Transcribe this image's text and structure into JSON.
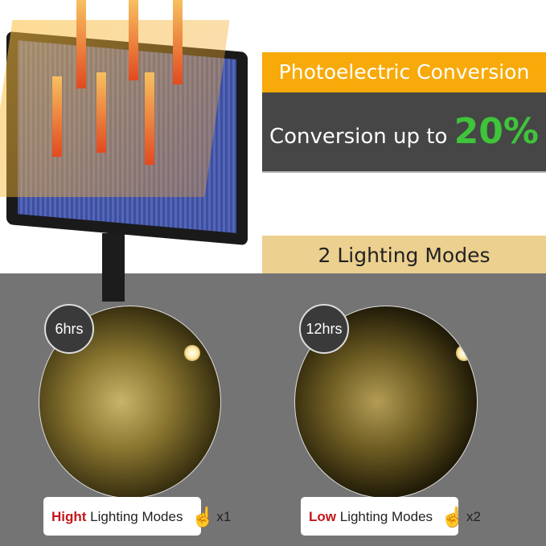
{
  "conversion": {
    "title": "Photoelectric Conversion",
    "text": "Conversion up to",
    "value": "20%",
    "value_color": "#3fc43a",
    "title_bg": "#f7aa0a"
  },
  "modes": {
    "title": "2 Lighting Modes"
  },
  "mode_cards": [
    {
      "hours": "6hrs",
      "level": "Hight",
      "label": "Lighting Modes",
      "presses": "x1",
      "icon": "hand-tap-icon"
    },
    {
      "hours": "12hrs",
      "level": "Low",
      "label": "Lighting Modes",
      "presses": "x2",
      "icon": "hand-tap-icon"
    }
  ]
}
